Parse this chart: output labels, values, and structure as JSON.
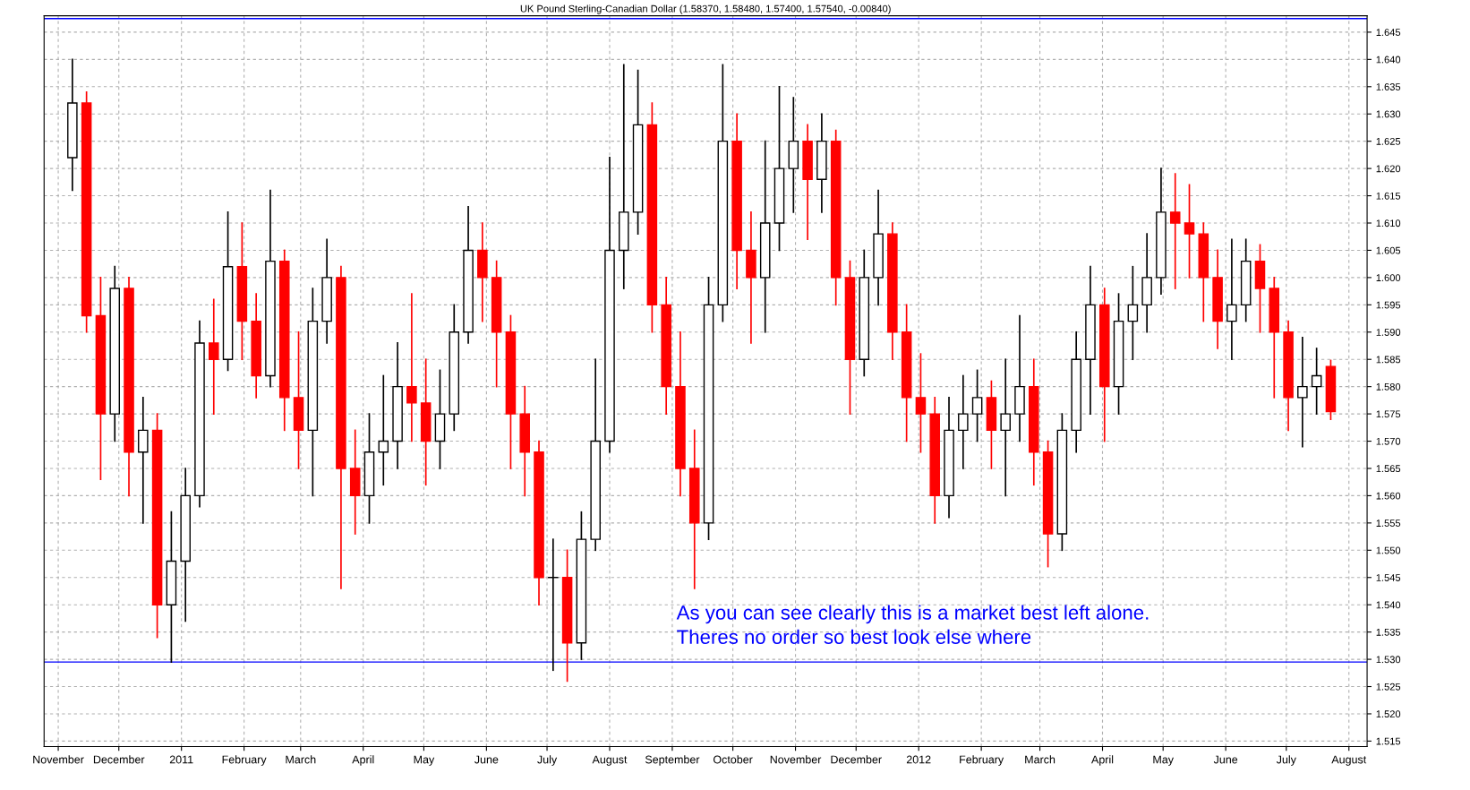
{
  "chart_data": {
    "type": "candlestick",
    "title": "UK Pound Sterling-Canadian Dollar (1.58370, 1.58480, 1.57400, 1.57540, -0.00840)",
    "annotations": [
      "As you can see clearly this is a market best left alone.\nTheres no order so best look else where"
    ],
    "x": [
      "2010-11-08",
      "2010-11-15",
      "2010-11-22",
      "2010-11-29",
      "2010-12-06",
      "2010-12-13",
      "2010-12-20",
      "2010-12-27",
      "2011-01-03",
      "2011-01-10",
      "2011-01-17",
      "2011-01-24",
      "2011-01-31",
      "2011-02-07",
      "2011-02-14",
      "2011-02-21",
      "2011-02-28",
      "2011-03-07",
      "2011-03-14",
      "2011-03-21",
      "2011-03-28",
      "2011-04-04",
      "2011-04-11",
      "2011-04-18",
      "2011-04-25",
      "2011-05-02",
      "2011-05-09",
      "2011-05-16",
      "2011-05-23",
      "2011-05-30",
      "2011-06-06",
      "2011-06-13",
      "2011-06-20",
      "2011-06-27",
      "2011-07-04",
      "2011-07-11",
      "2011-07-18",
      "2011-07-25",
      "2011-08-01",
      "2011-08-08",
      "2011-08-15",
      "2011-08-22",
      "2011-08-29",
      "2011-09-05",
      "2011-09-12",
      "2011-09-19",
      "2011-09-26",
      "2011-10-03",
      "2011-10-10",
      "2011-10-17",
      "2011-10-24",
      "2011-10-31",
      "2011-11-07",
      "2011-11-14",
      "2011-11-21",
      "2011-11-28",
      "2011-12-05",
      "2011-12-12",
      "2011-12-19",
      "2011-12-26",
      "2012-01-02",
      "2012-01-09",
      "2012-01-16",
      "2012-01-23",
      "2012-01-30",
      "2012-02-06",
      "2012-02-13",
      "2012-02-20",
      "2012-02-27",
      "2012-03-05",
      "2012-03-12",
      "2012-03-19",
      "2012-03-26",
      "2012-04-02",
      "2012-04-09",
      "2012-04-16",
      "2012-04-23",
      "2012-04-30",
      "2012-05-07",
      "2012-05-14",
      "2012-05-21",
      "2012-05-28",
      "2012-06-04",
      "2012-06-11",
      "2012-06-18",
      "2012-06-25",
      "2012-07-02",
      "2012-07-09",
      "2012-07-16",
      "2012-07-23"
    ],
    "ohlc": [
      [
        1.622,
        1.64,
        1.616,
        1.632
      ],
      [
        1.632,
        1.634,
        1.59,
        1.593
      ],
      [
        1.593,
        1.6,
        1.563,
        1.575
      ],
      [
        1.575,
        1.602,
        1.57,
        1.598
      ],
      [
        1.598,
        1.6,
        1.56,
        1.568
      ],
      [
        1.568,
        1.578,
        1.555,
        1.572
      ],
      [
        1.572,
        1.575,
        1.534,
        1.54
      ],
      [
        1.54,
        1.557,
        1.5295,
        1.548
      ],
      [
        1.548,
        1.565,
        1.537,
        1.56
      ],
      [
        1.56,
        1.592,
        1.558,
        1.588
      ],
      [
        1.588,
        1.596,
        1.575,
        1.585
      ],
      [
        1.585,
        1.612,
        1.583,
        1.602
      ],
      [
        1.602,
        1.61,
        1.585,
        1.592
      ],
      [
        1.592,
        1.597,
        1.578,
        1.582
      ],
      [
        1.582,
        1.616,
        1.58,
        1.603
      ],
      [
        1.603,
        1.605,
        1.572,
        1.578
      ],
      [
        1.578,
        1.59,
        1.565,
        1.572
      ],
      [
        1.572,
        1.598,
        1.56,
        1.592
      ],
      [
        1.592,
        1.607,
        1.588,
        1.6
      ],
      [
        1.6,
        1.602,
        1.543,
        1.565
      ],
      [
        1.565,
        1.572,
        1.553,
        1.56
      ],
      [
        1.56,
        1.575,
        1.555,
        1.568
      ],
      [
        1.568,
        1.582,
        1.562,
        1.57
      ],
      [
        1.57,
        1.588,
        1.565,
        1.58
      ],
      [
        1.58,
        1.597,
        1.57,
        1.577
      ],
      [
        1.577,
        1.585,
        1.562,
        1.57
      ],
      [
        1.57,
        1.583,
        1.565,
        1.575
      ],
      [
        1.575,
        1.595,
        1.572,
        1.59
      ],
      [
        1.59,
        1.613,
        1.588,
        1.605
      ],
      [
        1.605,
        1.61,
        1.592,
        1.6
      ],
      [
        1.6,
        1.603,
        1.58,
        1.59
      ],
      [
        1.59,
        1.593,
        1.565,
        1.575
      ],
      [
        1.575,
        1.58,
        1.56,
        1.568
      ],
      [
        1.568,
        1.57,
        1.54,
        1.545
      ],
      [
        1.545,
        1.552,
        1.528,
        1.545
      ],
      [
        1.545,
        1.55,
        1.526,
        1.533
      ],
      [
        1.533,
        1.557,
        1.53,
        1.552
      ],
      [
        1.552,
        1.585,
        1.55,
        1.57
      ],
      [
        1.57,
        1.622,
        1.568,
        1.605
      ],
      [
        1.605,
        1.639,
        1.598,
        1.612
      ],
      [
        1.612,
        1.638,
        1.608,
        1.628
      ],
      [
        1.628,
        1.632,
        1.59,
        1.595
      ],
      [
        1.595,
        1.6,
        1.575,
        1.58
      ],
      [
        1.58,
        1.59,
        1.56,
        1.565
      ],
      [
        1.565,
        1.572,
        1.543,
        1.555
      ],
      [
        1.555,
        1.6,
        1.552,
        1.595
      ],
      [
        1.595,
        1.639,
        1.592,
        1.625
      ],
      [
        1.625,
        1.63,
        1.598,
        1.605
      ],
      [
        1.605,
        1.612,
        1.588,
        1.6
      ],
      [
        1.6,
        1.625,
        1.59,
        1.61
      ],
      [
        1.61,
        1.635,
        1.605,
        1.62
      ],
      [
        1.62,
        1.633,
        1.612,
        1.625
      ],
      [
        1.625,
        1.628,
        1.607,
        1.618
      ],
      [
        1.618,
        1.63,
        1.612,
        1.625
      ],
      [
        1.625,
        1.627,
        1.595,
        1.6
      ],
      [
        1.6,
        1.603,
        1.575,
        1.585
      ],
      [
        1.585,
        1.605,
        1.582,
        1.6
      ],
      [
        1.6,
        1.616,
        1.595,
        1.608
      ],
      [
        1.608,
        1.61,
        1.585,
        1.59
      ],
      [
        1.59,
        1.595,
        1.57,
        1.578
      ],
      [
        1.578,
        1.586,
        1.568,
        1.575
      ],
      [
        1.575,
        1.578,
        1.555,
        1.56
      ],
      [
        1.56,
        1.578,
        1.556,
        1.572
      ],
      [
        1.572,
        1.582,
        1.565,
        1.575
      ],
      [
        1.575,
        1.583,
        1.57,
        1.578
      ],
      [
        1.578,
        1.581,
        1.565,
        1.572
      ],
      [
        1.572,
        1.585,
        1.56,
        1.575
      ],
      [
        1.575,
        1.593,
        1.57,
        1.58
      ],
      [
        1.58,
        1.585,
        1.562,
        1.568
      ],
      [
        1.568,
        1.57,
        1.547,
        1.553
      ],
      [
        1.553,
        1.575,
        1.55,
        1.572
      ],
      [
        1.572,
        1.59,
        1.568,
        1.585
      ],
      [
        1.585,
        1.602,
        1.575,
        1.595
      ],
      [
        1.595,
        1.598,
        1.57,
        1.58
      ],
      [
        1.58,
        1.597,
        1.575,
        1.592
      ],
      [
        1.592,
        1.602,
        1.585,
        1.595
      ],
      [
        1.595,
        1.608,
        1.59,
        1.6
      ],
      [
        1.6,
        1.62,
        1.597,
        1.612
      ],
      [
        1.612,
        1.619,
        1.598,
        1.61
      ],
      [
        1.61,
        1.617,
        1.6,
        1.608
      ],
      [
        1.608,
        1.61,
        1.592,
        1.6
      ],
      [
        1.6,
        1.605,
        1.587,
        1.592
      ],
      [
        1.592,
        1.607,
        1.585,
        1.595
      ],
      [
        1.595,
        1.607,
        1.592,
        1.603
      ],
      [
        1.603,
        1.606,
        1.59,
        1.598
      ],
      [
        1.598,
        1.6,
        1.578,
        1.59
      ],
      [
        1.59,
        1.592,
        1.572,
        1.578
      ],
      [
        1.578,
        1.589,
        1.569,
        1.58
      ],
      [
        1.58,
        1.587,
        1.575,
        1.582
      ],
      [
        1.5837,
        1.5848,
        1.574,
        1.5754
      ]
    ],
    "colors": [
      "#000000",
      "#ff0000",
      "#ff0000",
      "#000000",
      "#ff0000",
      "#000000",
      "#ff0000",
      "#000000",
      "#000000",
      "#000000",
      "#ff0000",
      "#000000",
      "#ff0000",
      "#ff0000",
      "#000000",
      "#ff0000",
      "#ff0000",
      "#000000",
      "#000000",
      "#ff0000",
      "#ff0000",
      "#000000",
      "#000000",
      "#000000",
      "#ff0000",
      "#ff0000",
      "#000000",
      "#000000",
      "#000000",
      "#ff0000",
      "#ff0000",
      "#ff0000",
      "#ff0000",
      "#ff0000",
      "#000000",
      "#ff0000",
      "#000000",
      "#000000",
      "#000000",
      "#000000",
      "#000000",
      "#ff0000",
      "#ff0000",
      "#ff0000",
      "#ff0000",
      "#000000",
      "#000000",
      "#ff0000",
      "#ff0000",
      "#000000",
      "#000000",
      "#000000",
      "#ff0000",
      "#000000",
      "#ff0000",
      "#ff0000",
      "#000000",
      "#000000",
      "#ff0000",
      "#ff0000",
      "#ff0000",
      "#ff0000",
      "#000000",
      "#000000",
      "#000000",
      "#ff0000",
      "#000000",
      "#000000",
      "#ff0000",
      "#ff0000",
      "#000000",
      "#000000",
      "#000000",
      "#ff0000",
      "#000000",
      "#000000",
      "#000000",
      "#000000",
      "#ff0000",
      "#ff0000",
      "#ff0000",
      "#ff0000",
      "#000000",
      "#000000",
      "#ff0000",
      "#ff0000",
      "#ff0000",
      "#000000",
      "#000000",
      "#ff0000"
    ],
    "xlim": [
      "2010-10-25",
      "2012-08-10"
    ],
    "xticks": [
      {
        "value": "2010-11-01",
        "label": "November"
      },
      {
        "value": "2010-12-01",
        "label": "December"
      },
      {
        "value": "2011-01-01",
        "label": "2011"
      },
      {
        "value": "2011-02-01",
        "label": "February"
      },
      {
        "value": "2011-03-01",
        "label": "March"
      },
      {
        "value": "2011-04-01",
        "label": "April"
      },
      {
        "value": "2011-05-01",
        "label": "May"
      },
      {
        "value": "2011-06-01",
        "label": "June"
      },
      {
        "value": "2011-07-01",
        "label": "July"
      },
      {
        "value": "2011-08-01",
        "label": "August"
      },
      {
        "value": "2011-09-01",
        "label": "September"
      },
      {
        "value": "2011-10-01",
        "label": "October"
      },
      {
        "value": "2011-11-01",
        "label": "November"
      },
      {
        "value": "2011-12-01",
        "label": "December"
      },
      {
        "value": "2012-01-01",
        "label": "2012"
      },
      {
        "value": "2012-02-01",
        "label": "February"
      },
      {
        "value": "2012-03-01",
        "label": "March"
      },
      {
        "value": "2012-04-01",
        "label": "April"
      },
      {
        "value": "2012-05-01",
        "label": "May"
      },
      {
        "value": "2012-06-01",
        "label": "June"
      },
      {
        "value": "2012-07-01",
        "label": "July"
      },
      {
        "value": "2012-08-01",
        "label": "August"
      }
    ],
    "ylim": [
      1.514,
      1.648
    ],
    "yticks": [
      1.515,
      {
        "value": 1.52,
        "label": "1.520"
      },
      1.525,
      {
        "value": 1.53,
        "label": "1.530"
      },
      1.535,
      {
        "value": 1.54,
        "label": "1.540"
      },
      1.545,
      {
        "value": 1.55,
        "label": "1.550"
      },
      1.555,
      {
        "value": 1.56,
        "label": "1.560"
      },
      1.565,
      {
        "value": 1.57,
        "label": "1.570"
      },
      1.575,
      {
        "value": 1.58,
        "label": "1.580"
      },
      1.585,
      {
        "value": 1.59,
        "label": "1.590"
      },
      1.595,
      {
        "value": 1.6,
        "label": "1.600"
      },
      1.605,
      {
        "value": 1.61,
        "label": "1.610"
      },
      1.615,
      {
        "value": 1.62,
        "label": "1.620"
      },
      1.625,
      {
        "value": 1.63,
        "label": "1.630"
      },
      1.635,
      {
        "value": 1.64,
        "label": "1.640"
      },
      1.645
    ],
    "ref_lines": [
      {
        "axis": "y",
        "value": 1.5295,
        "color": "#0000ff"
      },
      {
        "axis": "y",
        "value": 1.6475,
        "color": "#0000ff"
      }
    ],
    "grid": true
  }
}
